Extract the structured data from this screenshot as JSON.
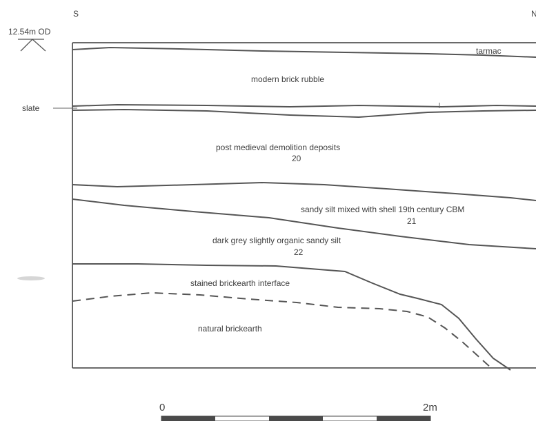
{
  "orientation": {
    "left": "S",
    "right": "N"
  },
  "datum": {
    "label": "12.54m OD"
  },
  "side_label": "slate",
  "layers": {
    "tarmac": "tarmac",
    "modern_brick_rubble": "modern brick rubble",
    "post_medieval_label": "post medieval demolition deposits",
    "post_medieval_number": "20",
    "sandy_silt_label": "sandy silt mixed with shell 19th century CBM",
    "sandy_silt_number": "21",
    "dark_grey_label": "dark grey slightly organic sandy silt",
    "dark_grey_number": "22",
    "stained_brickearth": "stained brickearth interface",
    "natural_brickearth": "natural brickearth"
  },
  "scale": {
    "start_label": "0",
    "end_label": "2m"
  },
  "colors": {
    "line": "#555555",
    "text": "#3f3f3f",
    "scale_dark": "#4a4a4a"
  }
}
